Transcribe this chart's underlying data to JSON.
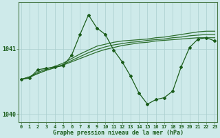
{
  "title": "Graphe pression niveau de la mer (hPa)",
  "background_color": "#ceeaea",
  "grid_color": "#aacece",
  "line_color_main": "#1a5c1a",
  "line_color_smooth": "#2d6e2d",
  "xlabel_color": "#1a5c1a",
  "ylabel_color": "#1a5c1a",
  "hours": [
    0,
    1,
    2,
    3,
    4,
    5,
    6,
    7,
    8,
    9,
    10,
    11,
    12,
    13,
    14,
    15,
    16,
    17,
    18,
    19,
    20,
    21,
    22,
    23
  ],
  "pressure_main": [
    1040.53,
    1040.55,
    1040.68,
    1040.7,
    1040.72,
    1040.74,
    1040.9,
    1041.22,
    1041.52,
    1041.32,
    1041.22,
    1040.98,
    1040.8,
    1040.58,
    1040.32,
    1040.15,
    1040.22,
    1040.25,
    1040.35,
    1040.72,
    1041.02,
    1041.15,
    1041.17,
    1041.12
  ],
  "pressure_smooth1": [
    1040.53,
    1040.57,
    1040.62,
    1040.67,
    1040.71,
    1040.75,
    1040.8,
    1040.85,
    1040.9,
    1040.95,
    1040.99,
    1041.02,
    1041.05,
    1041.07,
    1041.09,
    1041.1,
    1041.12,
    1041.13,
    1041.14,
    1041.15,
    1041.16,
    1041.17,
    1041.17,
    1041.17
  ],
  "pressure_smooth2": [
    1040.53,
    1040.56,
    1040.62,
    1040.67,
    1040.71,
    1040.76,
    1040.82,
    1040.88,
    1040.94,
    1040.99,
    1041.03,
    1041.06,
    1041.08,
    1041.1,
    1041.11,
    1041.13,
    1041.14,
    1041.15,
    1041.17,
    1041.18,
    1041.2,
    1041.21,
    1041.22,
    1041.22
  ],
  "pressure_smooth3": [
    1040.53,
    1040.57,
    1040.64,
    1040.69,
    1040.73,
    1040.78,
    1040.85,
    1040.92,
    1040.98,
    1041.04,
    1041.07,
    1041.1,
    1041.12,
    1041.13,
    1041.14,
    1041.15,
    1041.17,
    1041.18,
    1041.2,
    1041.22,
    1041.24,
    1041.26,
    1041.27,
    1041.27
  ],
  "ylim": [
    1039.87,
    1041.72
  ],
  "yticks": [
    1040.0,
    1041.0
  ],
  "ytick_labels": [
    "1040",
    "1041"
  ]
}
